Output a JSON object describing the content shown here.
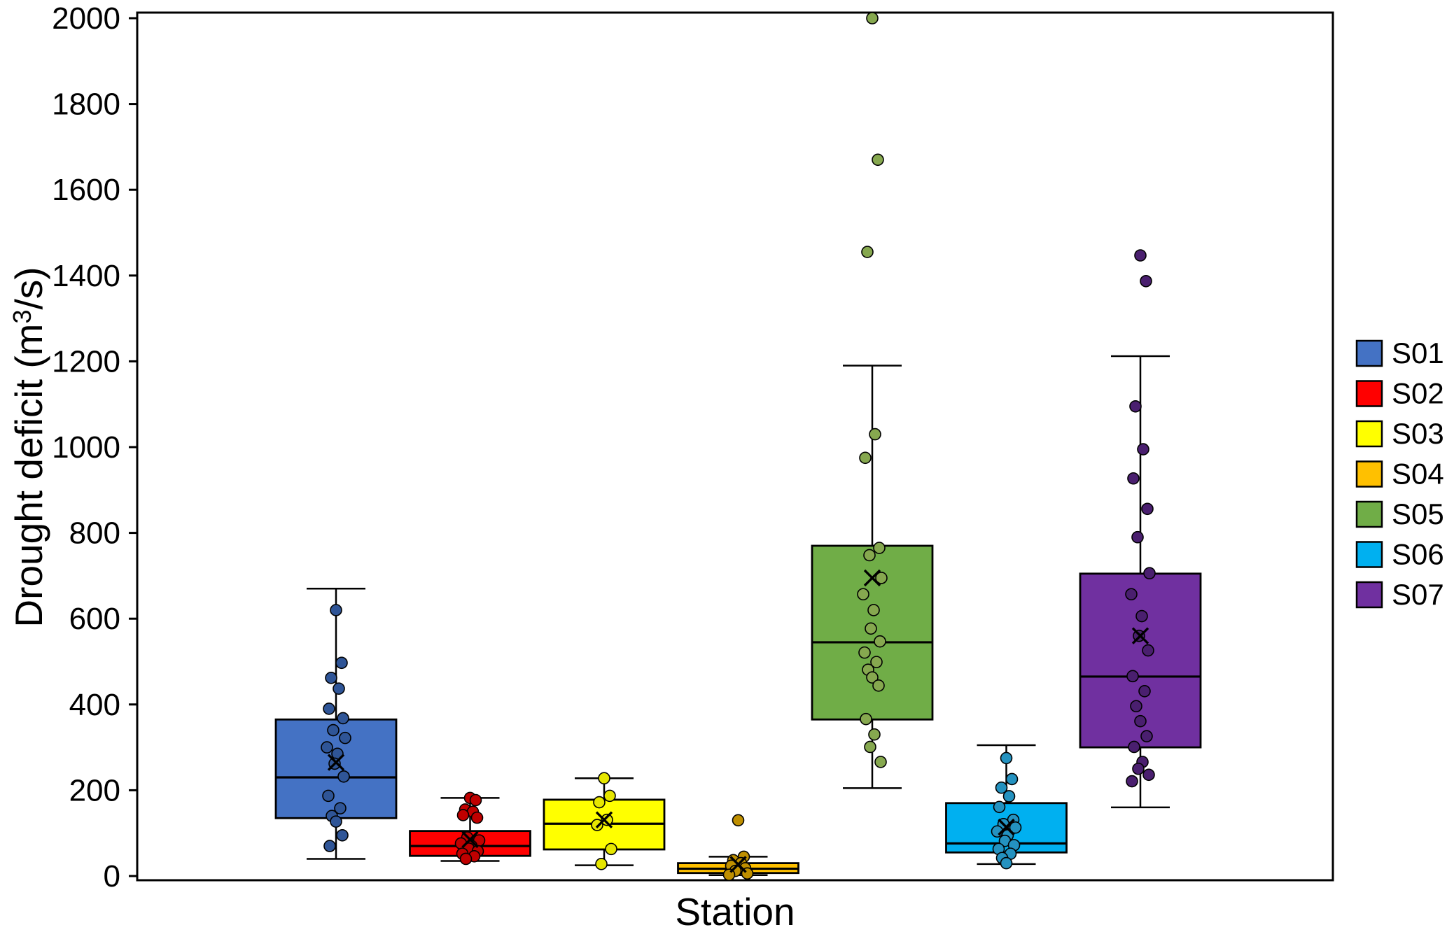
{
  "page": {
    "background": "#ffffff"
  },
  "chart_data": {
    "type": "box",
    "title": "",
    "xlabel": "Station",
    "ylabel": "Drought deficit (m³/s)",
    "ylabel_prefix": "Drought deficit (m",
    "ylabel_sup": "3",
    "ylabel_suffix": "/s)",
    "ylim": [
      0,
      2000
    ],
    "ytick_step": 200,
    "ytick_labels": [
      "0",
      "200",
      "400",
      "600",
      "800",
      "1000",
      "1200",
      "1400",
      "1600",
      "1800",
      "2000"
    ],
    "grid": false,
    "legend_position": "right-middle",
    "legend": [
      "S01",
      "S02",
      "S03",
      "S04",
      "S05",
      "S06",
      "S07"
    ],
    "series": [
      {
        "name": "S01",
        "box_color": "#4472C4",
        "point_color": "#2F5597",
        "min": 40,
        "q1": 135,
        "median": 230,
        "q3": 365,
        "max": 670,
        "mean": 265,
        "outliers": [],
        "points": [
          620,
          497,
          462,
          437,
          390,
          368,
          340,
          322,
          300,
          285,
          262,
          232,
          187,
          158,
          140,
          127,
          95,
          70
        ]
      },
      {
        "name": "S02",
        "box_color": "#FF0000",
        "point_color": "#C00000",
        "min": 35,
        "q1": 47,
        "median": 70,
        "q3": 105,
        "max": 182,
        "mean": 85,
        "outliers": [],
        "points": [
          182,
          177,
          155,
          150,
          142,
          136,
          90,
          83,
          76,
          70,
          64,
          58,
          52,
          46,
          40
        ]
      },
      {
        "name": "S03",
        "box_color": "#FFFF00",
        "point_color": "#E6E600",
        "min": 25,
        "q1": 62,
        "median": 122,
        "q3": 178,
        "max": 228,
        "mean": 131,
        "outliers": [],
        "points": [
          228,
          187,
          172,
          131,
          119,
          63,
          28
        ]
      },
      {
        "name": "S04",
        "box_color": "#FFC000",
        "point_color": "#BF8F00",
        "min": 2,
        "q1": 7,
        "median": 17,
        "q3": 30,
        "max": 45,
        "mean": 27,
        "outliers": [
          130
        ],
        "points": [
          130,
          45,
          37,
          30,
          24,
          18,
          12,
          6,
          3
        ]
      },
      {
        "name": "S05",
        "box_color": "#70AD47",
        "point_color": "#86A84F",
        "min": 205,
        "q1": 365,
        "median": 545,
        "q3": 770,
        "max": 1190,
        "mean": 695,
        "outliers": [
          2000,
          1670,
          1455
        ],
        "points": [
          2000,
          1670,
          1455,
          1030,
          975,
          765,
          748,
          695,
          657,
          620,
          577,
          547,
          521,
          499,
          481,
          463,
          444,
          366,
          330,
          301,
          266
        ]
      },
      {
        "name": "S06",
        "box_color": "#00B0F0",
        "point_color": "#2492C0",
        "min": 28,
        "q1": 55,
        "median": 76,
        "q3": 170,
        "max": 305,
        "mean": 114,
        "outliers": [],
        "points": [
          275,
          226,
          206,
          186,
          161,
          131,
          121,
          113,
          104,
          95,
          82,
          72,
          63,
          52,
          42,
          30
        ]
      },
      {
        "name": "S07",
        "box_color": "#7030A0",
        "point_color": "#4A1F6F",
        "min": 160,
        "q1": 300,
        "median": 465,
        "q3": 705,
        "max": 1212,
        "mean": 560,
        "outliers": [
          1447,
          1387
        ],
        "points": [
          1447,
          1387,
          1095,
          995,
          927,
          856,
          790,
          706,
          657,
          606,
          560,
          526,
          466,
          431,
          396,
          361,
          326,
          301,
          266,
          250,
          236,
          221
        ]
      }
    ]
  }
}
